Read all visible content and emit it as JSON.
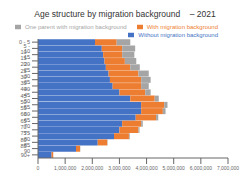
{
  "chart_data": {
    "type": "bar",
    "title": "Age structure by migration background    – 2021",
    "orientation": "horizontal",
    "stacked": true,
    "categories": [
      "90+",
      "85 - 90",
      "80 - 85",
      "75 - 80",
      "70 - 75",
      "65 - 70",
      "60 - 65",
      "55 - 60",
      "50 - 55",
      "45 - 50",
      "40 - 45",
      "35 - 40",
      "30 - 35",
      "25 - 30",
      "20 - 25",
      "15 - 20",
      "10 - 15",
      "5 - 10",
      "0 - 5"
    ],
    "series": [
      {
        "name": "Without migration background",
        "color": "#4472C4",
        "values": [
          500000,
          1400000,
          2200000,
          2800000,
          3000000,
          3100000,
          3600000,
          3800000,
          3800000,
          3400000,
          3000000,
          2750000,
          2650000,
          2600000,
          2500000,
          2450000,
          2400000,
          2350000,
          2100000
        ]
      },
      {
        "name": "With migration background",
        "color": "#ED7D31",
        "values": [
          60000,
          150000,
          350000,
          550000,
          700000,
          700000,
          750000,
          800000,
          850000,
          900000,
          950000,
          1050000,
          1150000,
          1100000,
          900000,
          750000,
          700000,
          750000,
          800000
        ]
      },
      {
        "name": "One parent with migration background",
        "color": "#A5A5A5",
        "values": [
          3000,
          8000,
          15000,
          30000,
          40000,
          60000,
          80000,
          100000,
          120000,
          150000,
          200000,
          280000,
          350000,
          380000,
          350000,
          420000,
          450000,
          480000,
          500000
        ]
      }
    ],
    "xlim": [
      0,
      7000000
    ],
    "xticks": [
      0,
      {
        "value": 1000000,
        "label": "1,000,000"
      },
      {
        "value": 2000000,
        "label": "2,000,000"
      },
      {
        "value": 3000000,
        "label": "3,000,000"
      },
      {
        "value": 4000000,
        "label": "4,000,000"
      },
      {
        "value": 5000000,
        "label": "5,000,000"
      },
      {
        "value": 6000000,
        "label": "6,000,000"
      },
      {
        "value": 7000000,
        "label": "7,000,000"
      }
    ],
    "legend": "upper right",
    "grid": false
  }
}
